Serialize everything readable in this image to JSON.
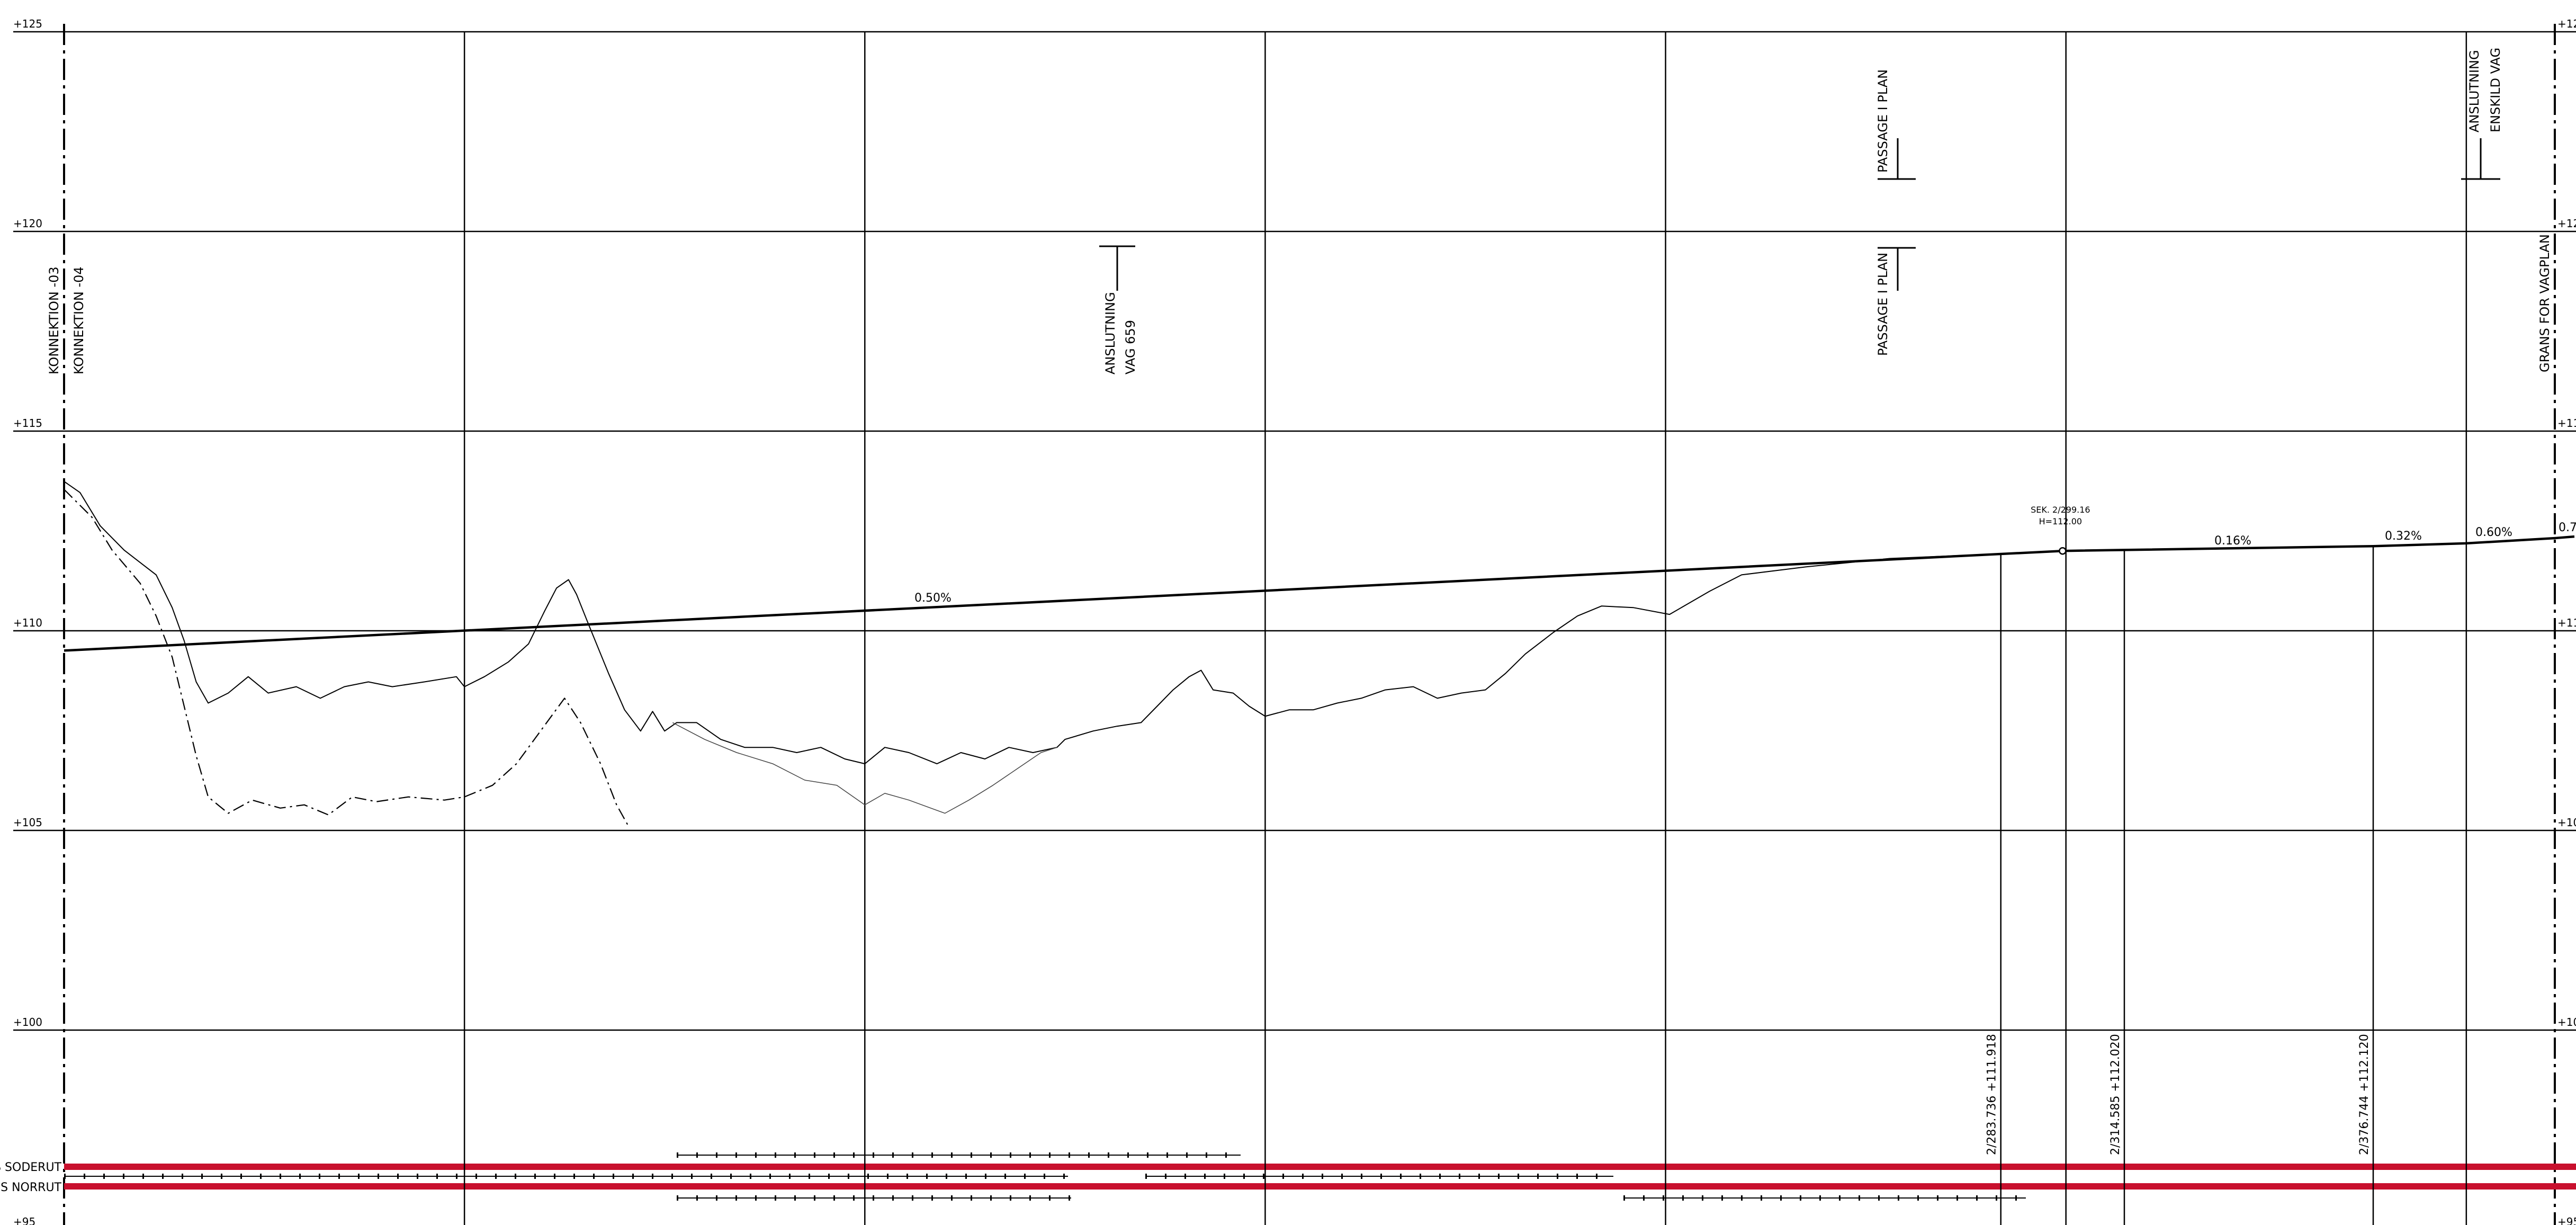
{
  "chart_data": {
    "type": "line",
    "xlim": [
      -200,
      427
    ],
    "xticks": [
      -100,
      0,
      100,
      200,
      300,
      400
    ],
    "ylim": [
      95,
      125
    ],
    "yticks": [
      {
        "value": 125,
        "label": "+125"
      },
      {
        "value": 120,
        "label": "+120"
      },
      {
        "value": 115,
        "label": "+115"
      },
      {
        "value": 110,
        "label": "+110"
      },
      {
        "value": 105,
        "label": "+105"
      },
      {
        "value": 100,
        "label": "+100"
      },
      {
        "value": 95,
        "label": "+95"
      }
    ],
    "grid": true,
    "series": [
      {
        "color": "#000000",
        "style": "thick",
        "x": [
          -200,
          299.16,
          376.744,
          400,
          422,
          427
        ],
        "values": [
          109.504,
          112.0,
          112.12,
          112.19,
          112.32,
          112.36
        ]
      },
      {
        "color": "#000000",
        "style": "solid",
        "x": [
          -200,
          -196,
          -191,
          -185,
          -177,
          -173,
          -170,
          -167,
          -164,
          -159,
          -154,
          -149,
          -142,
          -136,
          -130,
          -124,
          -118,
          -110,
          -102,
          -100,
          -95,
          -89,
          -84,
          -80,
          -77,
          -74,
          -72,
          -69,
          -64,
          -60,
          -56,
          -53,
          -50,
          -47,
          -42,
          -36,
          -30,
          -23,
          -17,
          -11,
          -5,
          0,
          5,
          11,
          18,
          24,
          30,
          36,
          42,
          48,
          50,
          57,
          63,
          69,
          73,
          77,
          81,
          84,
          87,
          92,
          96,
          100,
          106,
          112,
          118,
          124,
          130,
          137,
          143,
          149,
          155,
          160,
          165,
          172,
          178,
          184,
          192,
          201,
          211,
          219,
          235,
          256,
          284
        ],
        "values": [
          113.74,
          113.46,
          112.63,
          112.02,
          111.4,
          110.58,
          109.75,
          108.72,
          108.19,
          108.44,
          108.85,
          108.44,
          108.6,
          108.31,
          108.6,
          108.72,
          108.6,
          108.72,
          108.85,
          108.6,
          108.85,
          109.22,
          109.67,
          110.49,
          111.07,
          111.28,
          110.91,
          110.16,
          108.93,
          108.02,
          107.49,
          107.98,
          107.49,
          107.7,
          107.7,
          107.28,
          107.08,
          107.08,
          106.95,
          107.08,
          106.79,
          106.67,
          107.08,
          106.95,
          106.67,
          106.95,
          106.79,
          107.08,
          106.95,
          107.08,
          107.28,
          107.49,
          107.61,
          107.7,
          108.11,
          108.52,
          108.85,
          109.01,
          108.52,
          108.44,
          108.11,
          107.86,
          108.02,
          108.02,
          108.19,
          108.31,
          108.52,
          108.6,
          108.31,
          108.44,
          108.52,
          108.93,
          109.42,
          109.96,
          110.37,
          110.62,
          110.58,
          110.41,
          110.99,
          111.4,
          111.6,
          111.81,
          111.93
        ]
      },
      {
        "color": "#000000",
        "style": "dashed",
        "x": [
          -200,
          -193,
          -188,
          -181,
          -177,
          -173,
          -170,
          -167,
          -164,
          -159,
          -153,
          -146,
          -140,
          -134,
          -128,
          -122,
          -114,
          -105,
          -100,
          -93,
          -87,
          -81,
          -75,
          -71,
          -66,
          -62,
          -59
        ],
        "values": [
          113.54,
          112.84,
          112.02,
          111.19,
          110.37,
          109.34,
          108.11,
          106.87,
          105.84,
          105.43,
          105.76,
          105.56,
          105.64,
          105.39,
          105.84,
          105.72,
          105.84,
          105.76,
          105.84,
          106.13,
          106.67,
          107.49,
          108.31,
          107.7,
          106.67,
          105.64,
          105.1
        ]
      },
      {
        "color": "#444444",
        "style": "thin",
        "x": [
          -48,
          -40,
          -32,
          -23,
          -15,
          -7,
          0,
          5,
          11,
          20,
          26,
          32,
          38,
          44,
          48
        ],
        "values": [
          107.7,
          107.28,
          106.95,
          106.67,
          106.26,
          106.13,
          105.64,
          105.93,
          105.76,
          105.43,
          105.76,
          106.13,
          106.54,
          106.95,
          107.08
        ]
      }
    ],
    "grades": [
      "0.50%",
      "0.16%",
      "0.32%",
      "0.60%",
      "0.7"
    ],
    "sek": {
      "x": 299.16,
      "y": 112.0,
      "label": "SEK. 2/299.16",
      "h_label": "H=112.00"
    },
    "sections": [
      {
        "x": 283.736,
        "y": 111.918,
        "label": "2/283.736  +111.918"
      },
      {
        "x": 314.585,
        "y": 112.02,
        "label": "2/314.585  +112.020"
      },
      {
        "x": 376.744,
        "y": 112.12,
        "label": "2/376.744  +112.120"
      }
    ],
    "annotations": [
      "KONNEKTION -03",
      "KONNEKTION -04",
      "ANSLUTNING",
      "VAG 659",
      "PASSAGE I PLAN",
      "PASSAGE I PLAN",
      "ANSLUTNING",
      "ENSKILD VAG",
      "GRANS FOR VAGPLAN"
    ],
    "tracks": [
      "S SODERUT",
      "S NORRUT"
    ]
  }
}
